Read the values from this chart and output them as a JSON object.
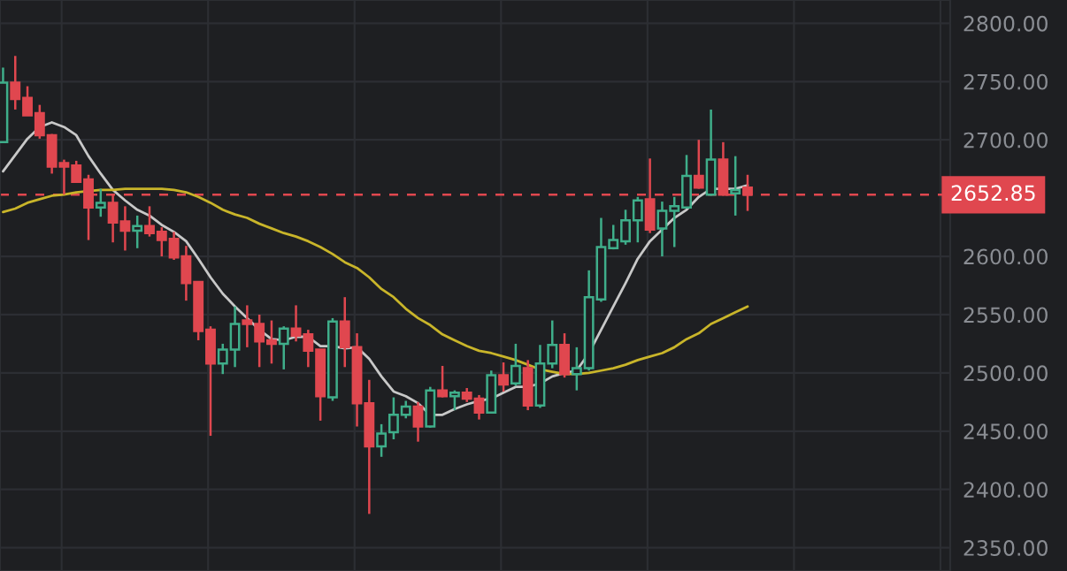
{
  "chart_data": {
    "type": "candlestick",
    "categories": [
      null,
      null,
      null,
      null,
      null,
      null,
      null,
      null,
      null,
      null,
      null,
      null,
      null,
      null,
      null,
      null,
      null,
      null,
      null,
      null,
      null,
      null,
      null,
      null,
      null,
      null,
      null,
      null,
      null,
      null,
      null,
      null,
      null,
      null,
      null,
      null,
      null,
      null,
      null,
      null,
      null,
      null,
      null,
      null,
      null,
      null,
      null,
      null,
      null,
      null,
      null,
      null,
      null,
      null,
      null,
      null,
      null,
      null,
      null,
      null,
      null,
      null
    ],
    "ohlc": [
      [
        2698,
        2762,
        2698,
        2749
      ],
      [
        2749,
        2772,
        2726,
        2735
      ],
      [
        2736,
        2746,
        2721,
        2721
      ],
      [
        2723,
        2730,
        2701,
        2704
      ],
      [
        2704,
        2705,
        2671,
        2677
      ],
      [
        2680,
        2683,
        2653,
        2677
      ],
      [
        2678,
        2682,
        2663,
        2664
      ],
      [
        2666,
        2670,
        2614,
        2642
      ],
      [
        2642,
        2658,
        2634,
        2646
      ],
      [
        2646,
        2653,
        2612,
        2629
      ],
      [
        2630,
        2643,
        2605,
        2622
      ],
      [
        2622,
        2635,
        2607,
        2626
      ],
      [
        2626,
        2643,
        2617,
        2620
      ],
      [
        2621,
        2625,
        2600,
        2614
      ],
      [
        2615,
        2621,
        2597,
        2599
      ],
      [
        2600,
        2609,
        2562,
        2577
      ],
      [
        2578,
        2578,
        2528,
        2536
      ],
      [
        2537,
        2540,
        2446,
        2508
      ],
      [
        2508,
        2525,
        2499,
        2520
      ],
      [
        2520,
        2557,
        2505,
        2542
      ],
      [
        2545,
        2558,
        2522,
        2542
      ],
      [
        2542,
        2550,
        2505,
        2527
      ],
      [
        2528,
        2545,
        2508,
        2525
      ],
      [
        2525,
        2540,
        2503,
        2538
      ],
      [
        2538,
        2558,
        2527,
        2532
      ],
      [
        2533,
        2537,
        2505,
        2519
      ],
      [
        2520,
        2520,
        2459,
        2480
      ],
      [
        2479,
        2547,
        2476,
        2544
      ],
      [
        2544,
        2565,
        2505,
        2522
      ],
      [
        2522,
        2534,
        2454,
        2474
      ],
      [
        2474,
        2494,
        2379,
        2437
      ],
      [
        2437,
        2456,
        2428,
        2448
      ],
      [
        2449,
        2479,
        2443,
        2464
      ],
      [
        2464,
        2476,
        2461,
        2471
      ],
      [
        2471,
        2475,
        2441,
        2454
      ],
      [
        2454,
        2488,
        2453,
        2485
      ],
      [
        2485,
        2506,
        2479,
        2480
      ],
      [
        2480,
        2485,
        2468,
        2483
      ],
      [
        2483,
        2487,
        2475,
        2478
      ],
      [
        2478,
        2481,
        2460,
        2466
      ],
      [
        2466,
        2502,
        2465,
        2498
      ],
      [
        2498,
        2509,
        2484,
        2490
      ],
      [
        2491,
        2525,
        2489,
        2506
      ],
      [
        2504,
        2511,
        2468,
        2472
      ],
      [
        2472,
        2524,
        2470,
        2508
      ],
      [
        2508,
        2545,
        2504,
        2524
      ],
      [
        2524,
        2534,
        2496,
        2499
      ],
      [
        2499,
        2522,
        2485,
        2504
      ],
      [
        2504,
        2588,
        2502,
        2565
      ],
      [
        2563,
        2633,
        2561,
        2608
      ],
      [
        2607,
        2627,
        2606,
        2614
      ],
      [
        2613,
        2640,
        2610,
        2631
      ],
      [
        2631,
        2651,
        2612,
        2648
      ],
      [
        2649,
        2684,
        2620,
        2623
      ],
      [
        2624,
        2647,
        2600,
        2639
      ],
      [
        2639,
        2651,
        2608,
        2643
      ],
      [
        2642,
        2687,
        2641,
        2669
      ],
      [
        2669,
        2700,
        2658,
        2659
      ],
      [
        2653,
        2726,
        2652,
        2683
      ],
      [
        2683,
        2698,
        2652,
        2653
      ],
      [
        2654,
        2686,
        2635,
        2657
      ],
      [
        2659,
        2670,
        2639,
        2652.85
      ]
    ],
    "colors": [
      "#3fae8a",
      "#e0474f",
      "#e0474f",
      "#e0474f",
      "#e0474f",
      "#e0474f",
      "#e0474f",
      "#e0474f",
      "#3fae8a",
      "#e0474f",
      "#e0474f",
      "#3fae8a",
      "#e0474f",
      "#e0474f",
      "#e0474f",
      "#e0474f",
      "#e0474f",
      "#e0474f",
      "#3fae8a",
      "#3fae8a",
      "#e0474f",
      "#e0474f",
      "#e0474f",
      "#3fae8a",
      "#e0474f",
      "#e0474f",
      "#e0474f",
      "#3fae8a",
      "#e0474f",
      "#e0474f",
      "#e0474f",
      "#3fae8a",
      "#3fae8a",
      "#3fae8a",
      "#e0474f",
      "#3fae8a",
      "#e0474f",
      "#3fae8a",
      "#e0474f",
      "#e0474f",
      "#3fae8a",
      "#e0474f",
      "#3fae8a",
      "#e0474f",
      "#3fae8a",
      "#3fae8a",
      "#e0474f",
      "#3fae8a",
      "#3fae8a",
      "#3fae8a",
      "#3fae8a",
      "#3fae8a",
      "#3fae8a",
      "#e0474f",
      "#3fae8a",
      "#3fae8a",
      "#3fae8a",
      "#e0474f",
      "#3fae8a",
      "#e0474f",
      "#3fae8a",
      "#e0474f"
    ],
    "series": [
      {
        "type": "line",
        "color": "#c8c8c8",
        "values": [
          2673,
          2687,
          2701,
          2711,
          2715,
          2711,
          2704,
          2686,
          2671,
          2657,
          2648,
          2640,
          2635,
          2627,
          2621,
          2613,
          2598,
          2582,
          2568,
          2557,
          2547,
          2537,
          2529,
          2528,
          2531,
          2531,
          2523,
          2523,
          2521,
          2522,
          2512,
          2497,
          2484,
          2480,
          2474,
          2464,
          2464,
          2469,
          2473,
          2476,
          2478,
          2483,
          2488,
          2488,
          2491,
          2497,
          2500,
          2502,
          2517,
          2537,
          2557,
          2577,
          2598,
          2613,
          2623,
          2633,
          2640,
          2651,
          2658,
          2658,
          2658,
          2661
        ]
      },
      {
        "type": "line",
        "color": "#c9b52a",
        "values": [
          2638,
          2641,
          2646,
          2649,
          2652,
          2653,
          2655,
          2656,
          2657,
          2657,
          2658,
          2658,
          2658,
          2658,
          2657,
          2655,
          2651,
          2646,
          2640,
          2636,
          2633,
          2628,
          2624,
          2620,
          2617,
          2613,
          2608,
          2602,
          2595,
          2590,
          2582,
          2572,
          2565,
          2555,
          2547,
          2541,
          2533,
          2528,
          2523,
          2519,
          2517,
          2514,
          2511,
          2507,
          2503,
          2501,
          2499,
          2499,
          2500,
          2502,
          2504,
          2507,
          2511,
          2514,
          2517,
          2522,
          2529,
          2534,
          2542,
          2547,
          2552,
          2557
        ]
      }
    ],
    "ylim": [
      2330,
      2820
    ],
    "yticks": [
      {
        "value": 2350,
        "label": "2350.00"
      },
      {
        "value": 2400,
        "label": "2400.00"
      },
      {
        "value": 2450,
        "label": "2450.00"
      },
      {
        "value": 2500,
        "label": "2500.00"
      },
      {
        "value": 2550,
        "label": "2550.00"
      },
      {
        "value": 2600,
        "label": "2600.00"
      },
      {
        "value": 2700,
        "label": "2700.00"
      },
      {
        "value": 2750,
        "label": "2750.00"
      },
      {
        "value": 2800,
        "label": "2800.00"
      }
    ],
    "ref_lines": [
      {
        "axis": "y",
        "value": 2652.85,
        "label": "2652.85",
        "color": "#e0474f",
        "line_style": "dashed"
      }
    ],
    "tick_labels": "y",
    "grid": true
  }
}
